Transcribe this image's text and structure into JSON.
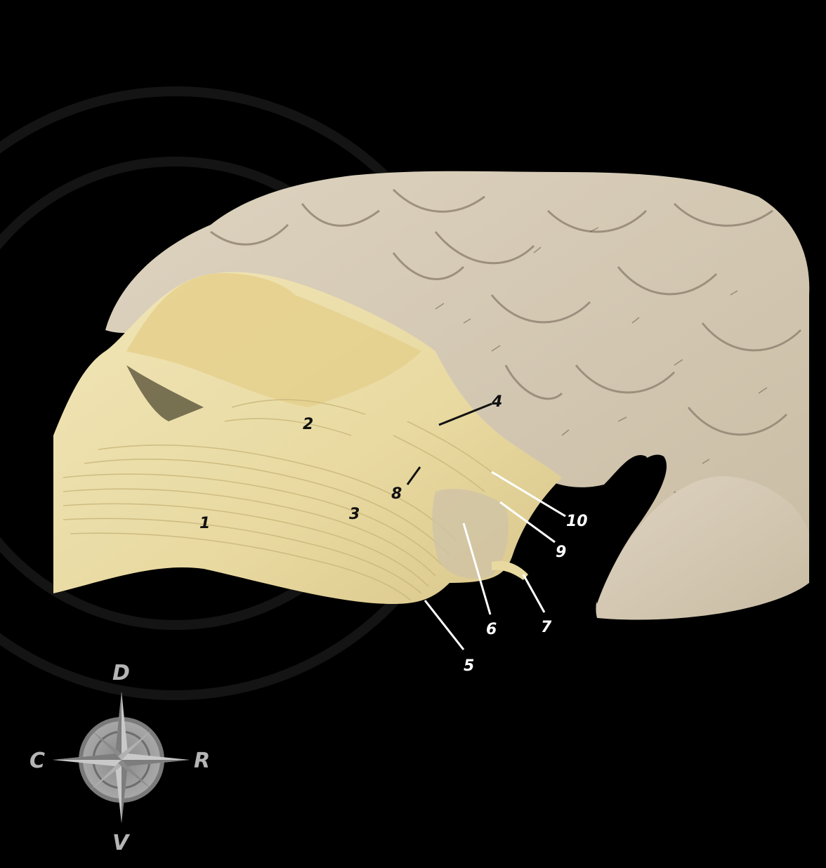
{
  "figure": {
    "labels": [
      {
        "id": "1",
        "text": "1"
      },
      {
        "id": "2",
        "text": "2"
      },
      {
        "id": "3",
        "text": "3"
      },
      {
        "id": "4",
        "text": "4"
      },
      {
        "id": "5",
        "text": "5"
      },
      {
        "id": "6",
        "text": "6"
      },
      {
        "id": "7",
        "text": "7"
      },
      {
        "id": "8",
        "text": "8"
      },
      {
        "id": "9",
        "text": "9"
      },
      {
        "id": "10",
        "text": "10"
      }
    ],
    "compass": {
      "dorsal": "D",
      "ventral": "V",
      "caudal": "C",
      "rostral": "R"
    },
    "colors": {
      "background": "#000000",
      "white_matter": "#e9dca6",
      "gray_matter": "#d6cbb6",
      "label_dark": "#111111",
      "label_light": "#ffffff",
      "compass": "#9a9a9a"
    }
  }
}
